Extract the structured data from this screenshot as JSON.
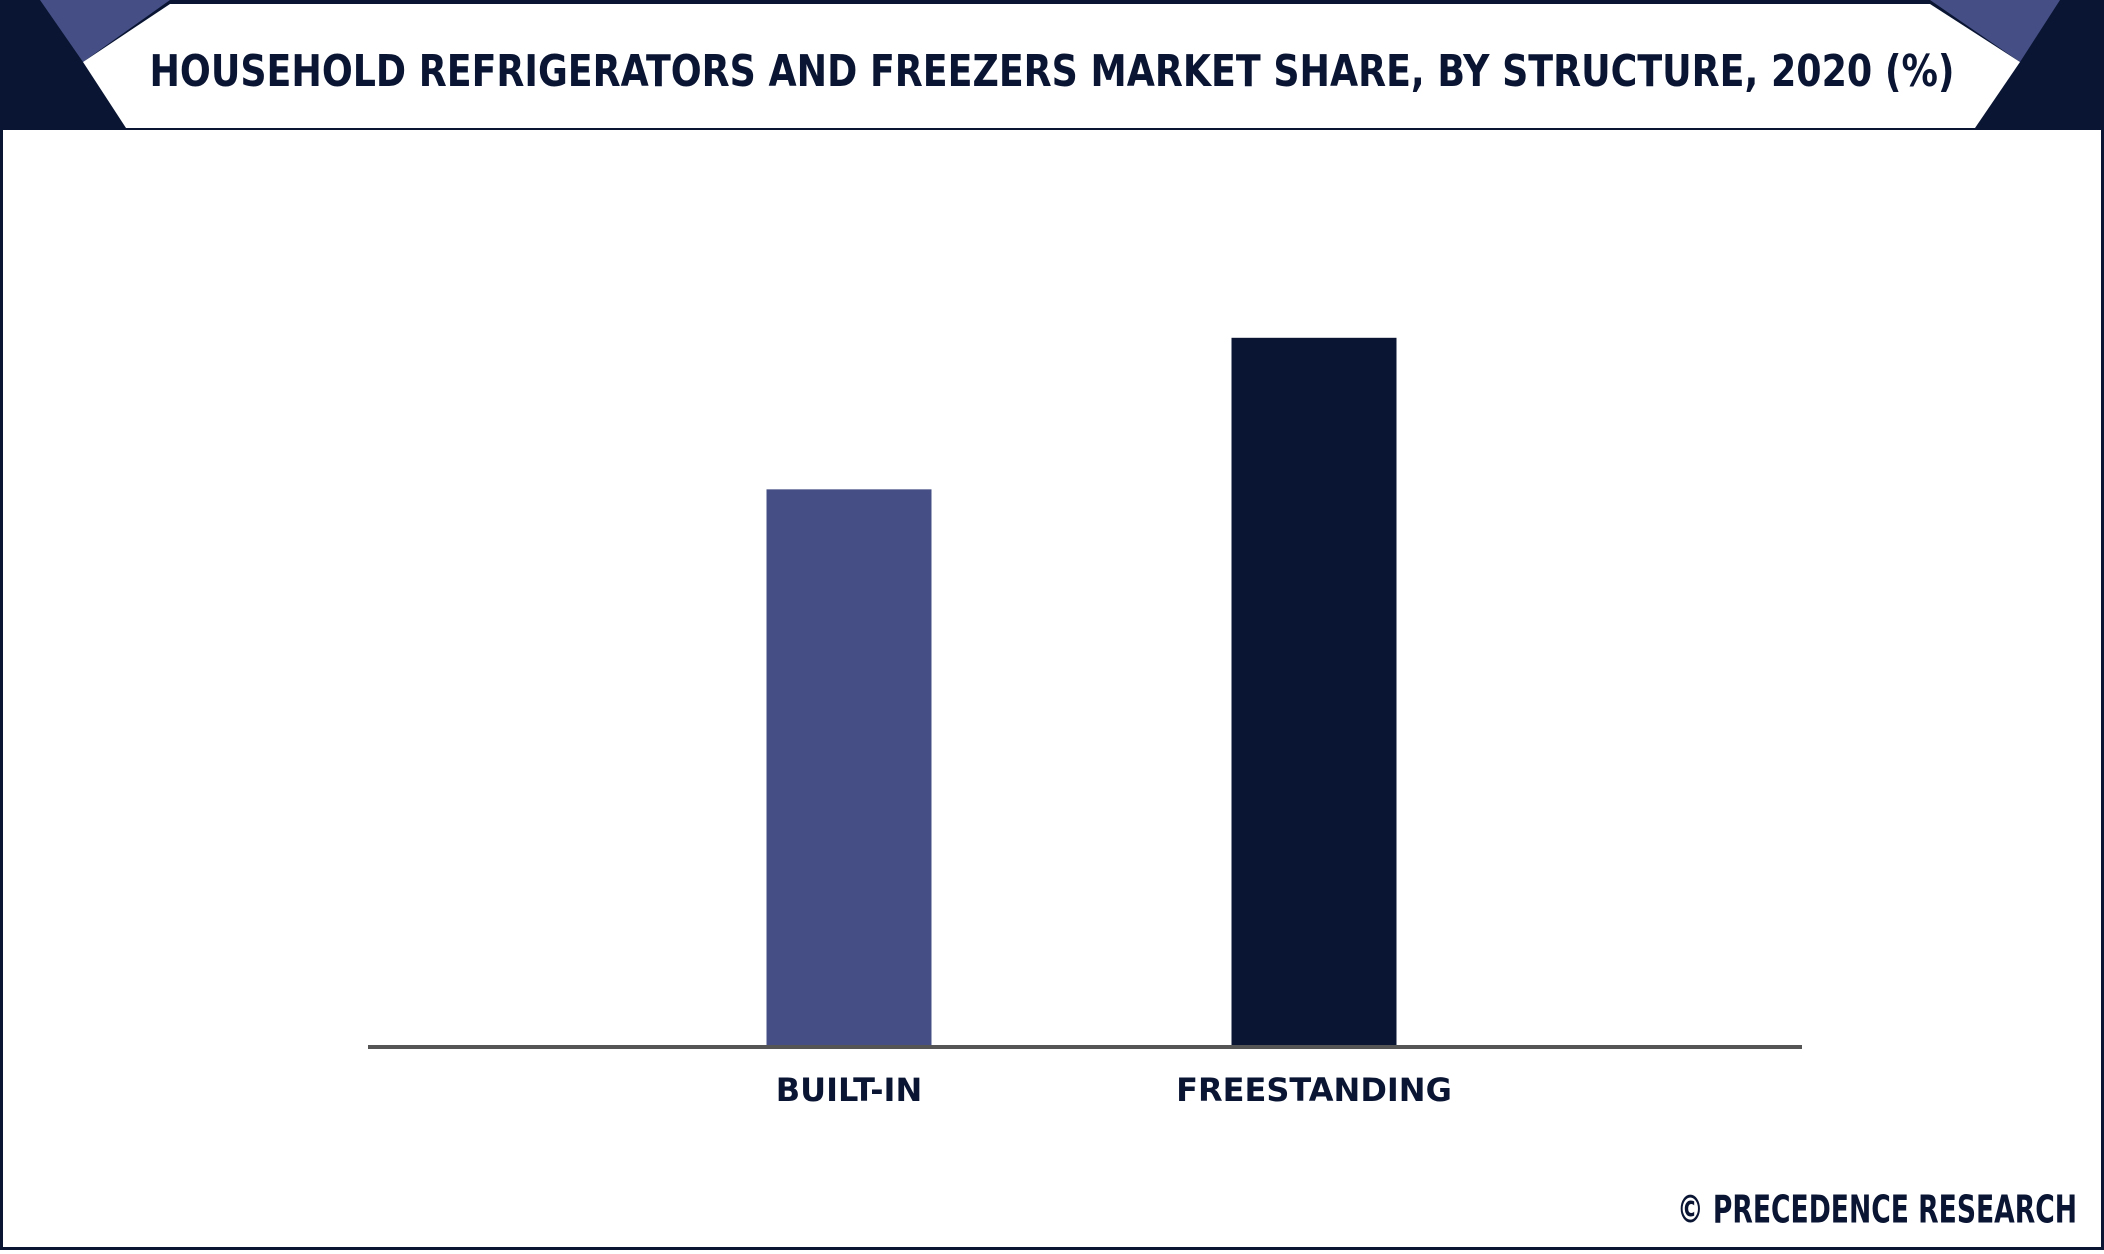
{
  "chart_data": {
    "type": "bar",
    "title": "HOUSEHOLD REFRIGERATORS AND FREEZERS MARKET SHARE, BY STRUCTURE, 2020 (%)",
    "categories": [
      "BUILT-IN",
      "FREESTANDING"
    ],
    "values": [
      44,
      56
    ],
    "colors": [
      "#454f85",
      "#0a1533"
    ],
    "ylim": [
      0,
      70
    ],
    "source": "© PRECEDENCE RESEARCH"
  }
}
